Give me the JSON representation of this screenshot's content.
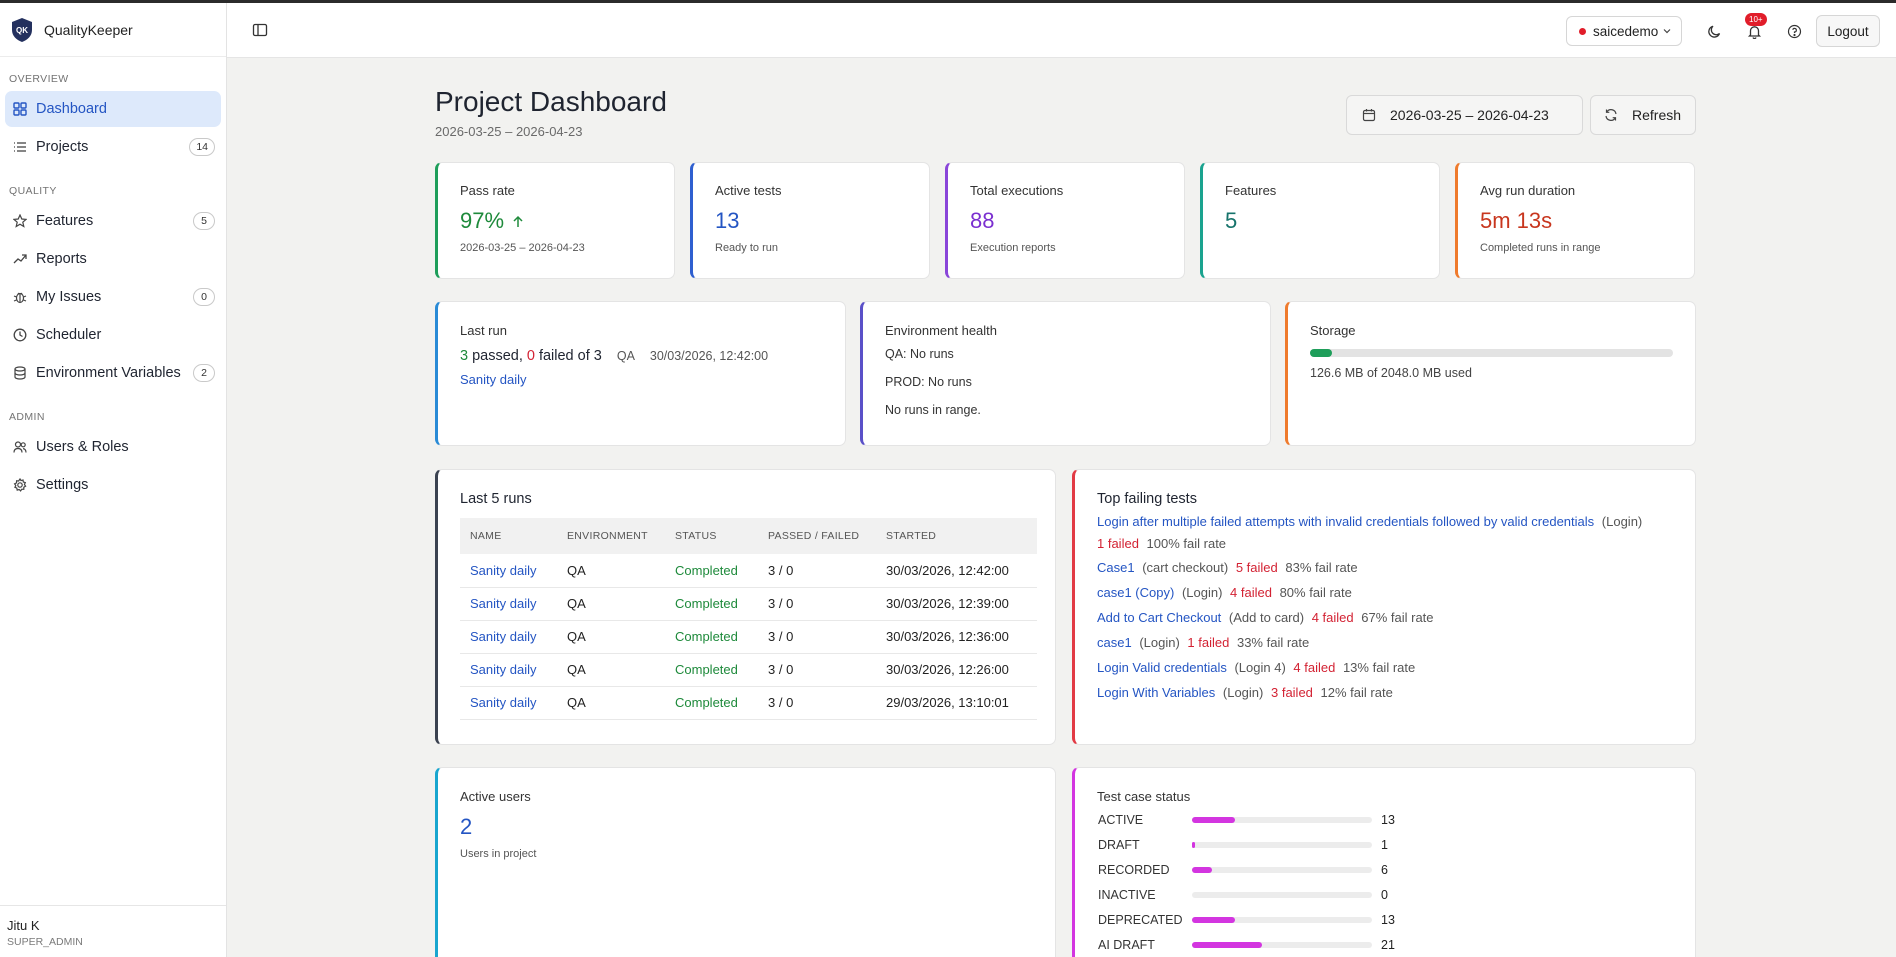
{
  "app": {
    "name": "QualityKeeper",
    "logo_text": "QK"
  },
  "sidebar": {
    "sections": [
      {
        "label": "OVERVIEW",
        "items": [
          {
            "label": "Dashboard",
            "icon": "grid-icon",
            "active": true
          },
          {
            "label": "Projects",
            "icon": "list-icon",
            "count": "14"
          }
        ]
      },
      {
        "label": "QUALITY",
        "items": [
          {
            "label": "Features",
            "icon": "star-icon",
            "count": "5"
          },
          {
            "label": "Reports",
            "icon": "trend-icon"
          },
          {
            "label": "My Issues",
            "icon": "alert-icon",
            "count": "0"
          },
          {
            "label": "Scheduler",
            "icon": "clock-icon"
          },
          {
            "label": "Environment Variables",
            "icon": "database-icon",
            "count": "2"
          }
        ]
      },
      {
        "label": "ADMIN",
        "items": [
          {
            "label": "Users & Roles",
            "icon": "users-icon"
          },
          {
            "label": "Settings",
            "icon": "gear-icon"
          }
        ]
      }
    ],
    "user": {
      "name": "Jitu K",
      "role": "SUPER_ADMIN"
    }
  },
  "header": {
    "project": "saicedemo",
    "notifications_badge": "10+",
    "logout_label": "Logout"
  },
  "page": {
    "title": "Project Dashboard",
    "subtitle": "2026-03-25 – 2026-04-23",
    "date_range": "2026-03-25 – 2026-04-23",
    "refresh_label": "Refresh"
  },
  "stats": [
    {
      "label": "Pass rate",
      "value": "97%",
      "sub": "2026-03-25 – 2026-04-23",
      "color": "#1e8a3b",
      "border": "#1e9e5a",
      "arrow": true
    },
    {
      "label": "Active tests",
      "value": "13",
      "sub": "Ready to run",
      "color": "#2455c3",
      "border": "#2f5fd0"
    },
    {
      "label": "Total executions",
      "value": "88",
      "sub": "Execution reports",
      "color": "#7b2fd0",
      "border": "#8a46d9"
    },
    {
      "label": "Features",
      "value": "5",
      "sub": "",
      "color": "#16736b",
      "border": "#1aa38f"
    },
    {
      "label": "Avg run duration",
      "value": "5m 13s",
      "sub": "Completed runs in range",
      "color": "#c8361e",
      "border": "#ef7b2d"
    }
  ],
  "last_run": {
    "label": "Last run",
    "passed": "3",
    "passed_word": "passed,",
    "failed": "0",
    "failed_word": "failed of 3",
    "env": "QA",
    "time": "30/03/2026, 12:42:00",
    "name": "Sanity daily"
  },
  "env_health": {
    "label": "Environment health",
    "lines": [
      "QA: No runs",
      "PROD: No runs",
      "No runs in range."
    ]
  },
  "storage": {
    "label": "Storage",
    "used_mb": 126.6,
    "total_mb": 2048.0,
    "text": "126.6 MB of 2048.0 MB used"
  },
  "last5": {
    "title": "Last 5 runs",
    "columns": [
      "NAME",
      "ENVIRONMENT",
      "STATUS",
      "PASSED / FAILED",
      "STARTED"
    ],
    "rows": [
      [
        "Sanity daily",
        "QA",
        "Completed",
        "3 / 0",
        "30/03/2026, 12:42:00"
      ],
      [
        "Sanity daily",
        "QA",
        "Completed",
        "3 / 0",
        "30/03/2026, 12:39:00"
      ],
      [
        "Sanity daily",
        "QA",
        "Completed",
        "3 / 0",
        "30/03/2026, 12:36:00"
      ],
      [
        "Sanity daily",
        "QA",
        "Completed",
        "3 / 0",
        "30/03/2026, 12:26:00"
      ],
      [
        "Sanity daily",
        "QA",
        "Completed",
        "3 / 0",
        "29/03/2026, 13:10:01"
      ]
    ]
  },
  "top_failing": {
    "title": "Top failing tests",
    "items": [
      {
        "name": "Login after multiple failed attempts with invalid credentials followed by valid credentials",
        "feature": "(Login)",
        "failed": "1 failed",
        "rate": "100% fail rate",
        "wrap": true
      },
      {
        "name": "Case1",
        "feature": "(cart checkout)",
        "failed": "5 failed",
        "rate": "83% fail rate"
      },
      {
        "name": "case1 (Copy)",
        "feature": "(Login)",
        "failed": "4 failed",
        "rate": "80% fail rate"
      },
      {
        "name": "Add to Cart Checkout",
        "feature": "(Add to card)",
        "failed": "4 failed",
        "rate": "67% fail rate"
      },
      {
        "name": "case1",
        "feature": "(Login)",
        "failed": "1 failed",
        "rate": "33% fail rate"
      },
      {
        "name": "Login Valid credentials",
        "feature": "(Login 4)",
        "failed": "4 failed",
        "rate": "13% fail rate"
      },
      {
        "name": "Login With Variables",
        "feature": "(Login)",
        "failed": "3 failed",
        "rate": "12% fail rate"
      }
    ]
  },
  "active_users": {
    "label": "Active users",
    "value": "2",
    "sub": "Users in project"
  },
  "test_case_status": {
    "title": "Test case status",
    "max": 54,
    "rows": [
      {
        "label": "ACTIVE",
        "count": 13
      },
      {
        "label": "DRAFT",
        "count": 1
      },
      {
        "label": "RECORDED",
        "count": 6
      },
      {
        "label": "INACTIVE",
        "count": 0
      },
      {
        "label": "DEPRECATED",
        "count": 13
      },
      {
        "label": "AI DRAFT",
        "count": 21
      }
    ]
  }
}
